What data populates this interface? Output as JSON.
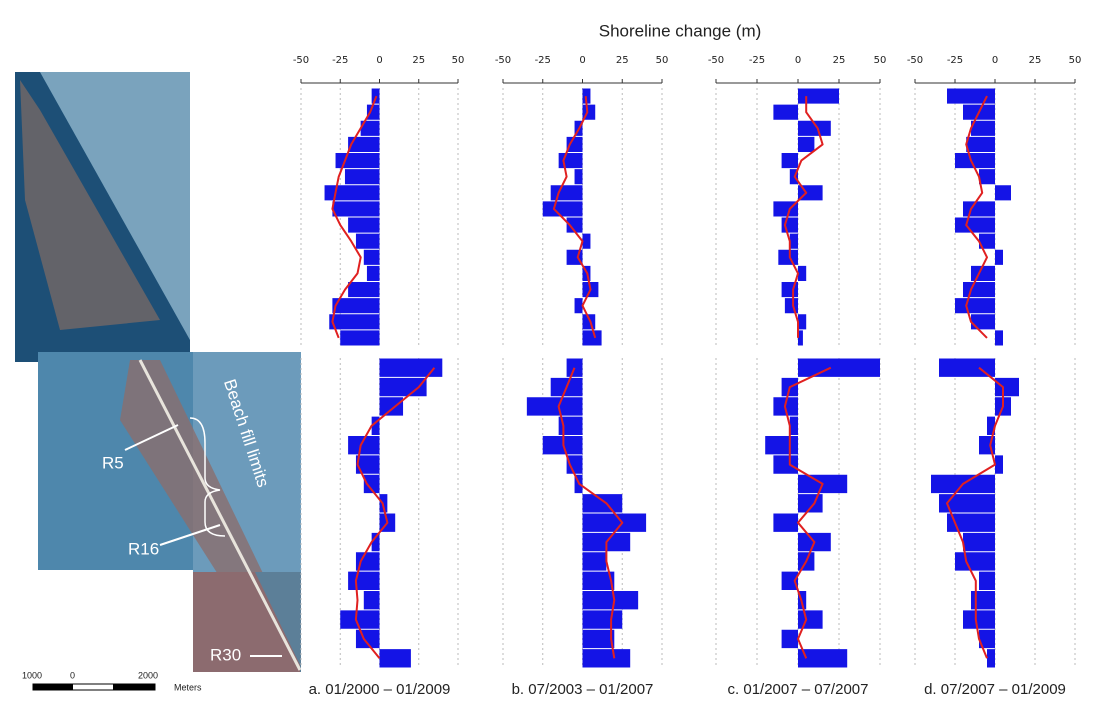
{
  "figure_title": "Shoreline change (m)",
  "map": {
    "labels": [
      "R5",
      "R16",
      "R30"
    ],
    "beach_fill": "Beach fill limits",
    "scale_labels": [
      "1000",
      "0",
      "2000"
    ],
    "scale_unit": "Meters"
  },
  "chart_data": [
    {
      "type": "bar",
      "title": "a. 01/2000 – 01/2009",
      "xlim": [
        -50,
        50
      ],
      "xticks": [
        -50,
        -25,
        0,
        25,
        50
      ],
      "color": "#1414e6",
      "trend_color": "#e02020",
      "grid": true,
      "segments": [
        {
          "values": [
            -5,
            -8,
            -12,
            -20,
            -28,
            -22,
            -35,
            -30,
            -20,
            -15,
            -10,
            -8,
            -20,
            -30,
            -32,
            -25
          ],
          "trend": [
            -2,
            -6,
            -12,
            -18,
            -22,
            -26,
            -28,
            -30,
            -25,
            -18,
            -12,
            -14,
            -22,
            -28,
            -30,
            -26
          ]
        },
        {
          "values": [
            40,
            30,
            15,
            -5,
            -20,
            -15,
            -10,
            5,
            10,
            -5,
            -15,
            -20,
            -10,
            -25,
            -15,
            20
          ],
          "trend": [
            35,
            25,
            10,
            -5,
            -12,
            -14,
            -8,
            2,
            5,
            -5,
            -12,
            -15,
            -14,
            -15,
            -10,
            0
          ]
        }
      ]
    },
    {
      "type": "bar",
      "title": "b. 07/2003 – 01/2007",
      "xlim": [
        -50,
        50
      ],
      "xticks": [
        -50,
        -25,
        0,
        25,
        50
      ],
      "color": "#1414e6",
      "trend_color": "#e02020",
      "grid": true,
      "segments": [
        {
          "values": [
            5,
            8,
            -5,
            -10,
            -15,
            -5,
            -20,
            -25,
            -10,
            5,
            -10,
            5,
            10,
            -5,
            8,
            12
          ],
          "trend": [
            2,
            3,
            -2,
            -8,
            -12,
            -10,
            -15,
            -18,
            -8,
            0,
            -3,
            3,
            5,
            0,
            5,
            8
          ]
        },
        {
          "values": [
            -10,
            -20,
            -35,
            -15,
            -25,
            -10,
            -5,
            25,
            40,
            30,
            15,
            20,
            35,
            25,
            20,
            30
          ],
          "trend": [
            -5,
            -10,
            -15,
            -12,
            -12,
            -8,
            -2,
            15,
            25,
            15,
            15,
            18,
            20,
            18,
            18,
            20
          ]
        }
      ]
    },
    {
      "type": "bar",
      "title": "c. 01/2007 – 07/2007",
      "xlim": [
        -50,
        50
      ],
      "xticks": [
        -50,
        -25,
        0,
        25,
        50
      ],
      "color": "#1414e6",
      "trend_color": "#e02020",
      "grid": true,
      "segments": [
        {
          "values": [
            25,
            -15,
            20,
            10,
            -10,
            -5,
            15,
            -15,
            -10,
            -5,
            -12,
            5,
            -10,
            -8,
            5,
            3
          ],
          "trend": [
            5,
            5,
            12,
            15,
            2,
            -2,
            5,
            -5,
            -8,
            -5,
            -5,
            0,
            -3,
            -3,
            0,
            0
          ]
        },
        {
          "values": [
            50,
            -10,
            -15,
            -5,
            -20,
            -15,
            30,
            15,
            -15,
            20,
            10,
            -10,
            5,
            15,
            -10,
            30
          ],
          "trend": [
            20,
            -5,
            -8,
            -5,
            -5,
            -5,
            15,
            10,
            0,
            10,
            5,
            -2,
            2,
            5,
            0,
            5
          ]
        }
      ]
    },
    {
      "type": "bar",
      "title": "d. 07/2007 – 01/2009",
      "xlim": [
        -50,
        50
      ],
      "xticks": [
        -50,
        -25,
        0,
        25,
        50
      ],
      "color": "#1414e6",
      "trend_color": "#e02020",
      "grid": true,
      "segments": [
        {
          "values": [
            -30,
            -20,
            -15,
            -18,
            -25,
            -10,
            10,
            -20,
            -25,
            -10,
            5,
            -15,
            -20,
            -25,
            -15,
            5
          ],
          "trend": [
            -5,
            -10,
            -15,
            -18,
            -15,
            -10,
            -8,
            -15,
            -18,
            -10,
            -5,
            -10,
            -15,
            -18,
            -15,
            -5
          ]
        },
        {
          "values": [
            -35,
            15,
            10,
            -5,
            -10,
            5,
            -40,
            -35,
            -30,
            -20,
            -25,
            -10,
            -15,
            -20,
            -10,
            -5
          ],
          "trend": [
            -10,
            5,
            5,
            0,
            -3,
            0,
            -20,
            -30,
            -25,
            -20,
            -18,
            -12,
            -12,
            -12,
            -10,
            -5
          ]
        }
      ]
    }
  ]
}
